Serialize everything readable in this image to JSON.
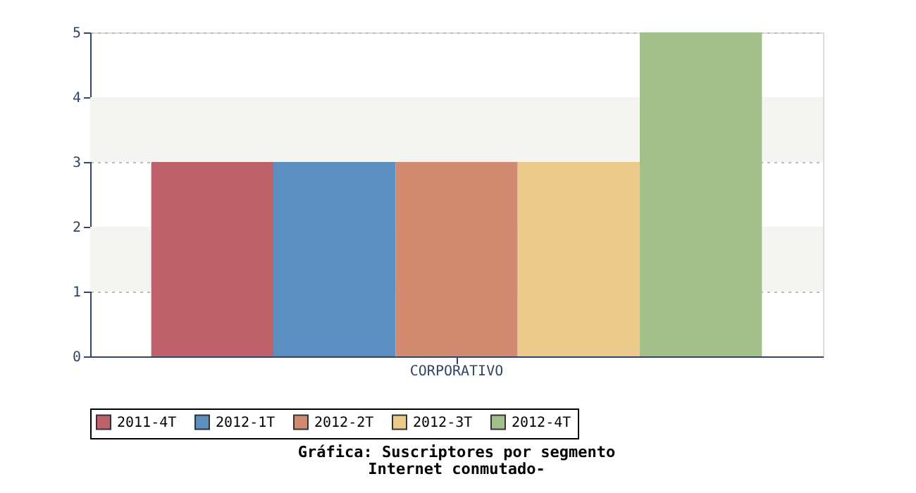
{
  "chart_data": {
    "type": "bar",
    "title": "Gráfica: Suscriptores por segmento",
    "subtitle": "Internet conmutado-",
    "categories": [
      "CORPORATIVO"
    ],
    "series": [
      {
        "name": "2011-4T",
        "color": "#c0626b",
        "values": [
          3
        ]
      },
      {
        "name": "2012-1T",
        "color": "#5b8fc0",
        "values": [
          3
        ]
      },
      {
        "name": "2012-2T",
        "color": "#d28a70",
        "values": [
          3
        ]
      },
      {
        "name": "2012-3T",
        "color": "#ecca8b",
        "values": [
          3
        ]
      },
      {
        "name": "2012-4T",
        "color": "#a4c08a",
        "values": [
          5
        ]
      }
    ],
    "ylim": [
      0,
      5
    ],
    "yticks": [
      0,
      1,
      2,
      3,
      4,
      5
    ],
    "bands": [
      {
        "axis": "y",
        "from": 1,
        "to": 2,
        "color": "#f4f4f0"
      },
      {
        "axis": "y",
        "from": 3,
        "to": 4,
        "color": "#f4f4f0"
      }
    ],
    "grid": "y",
    "legend": "bottom"
  }
}
